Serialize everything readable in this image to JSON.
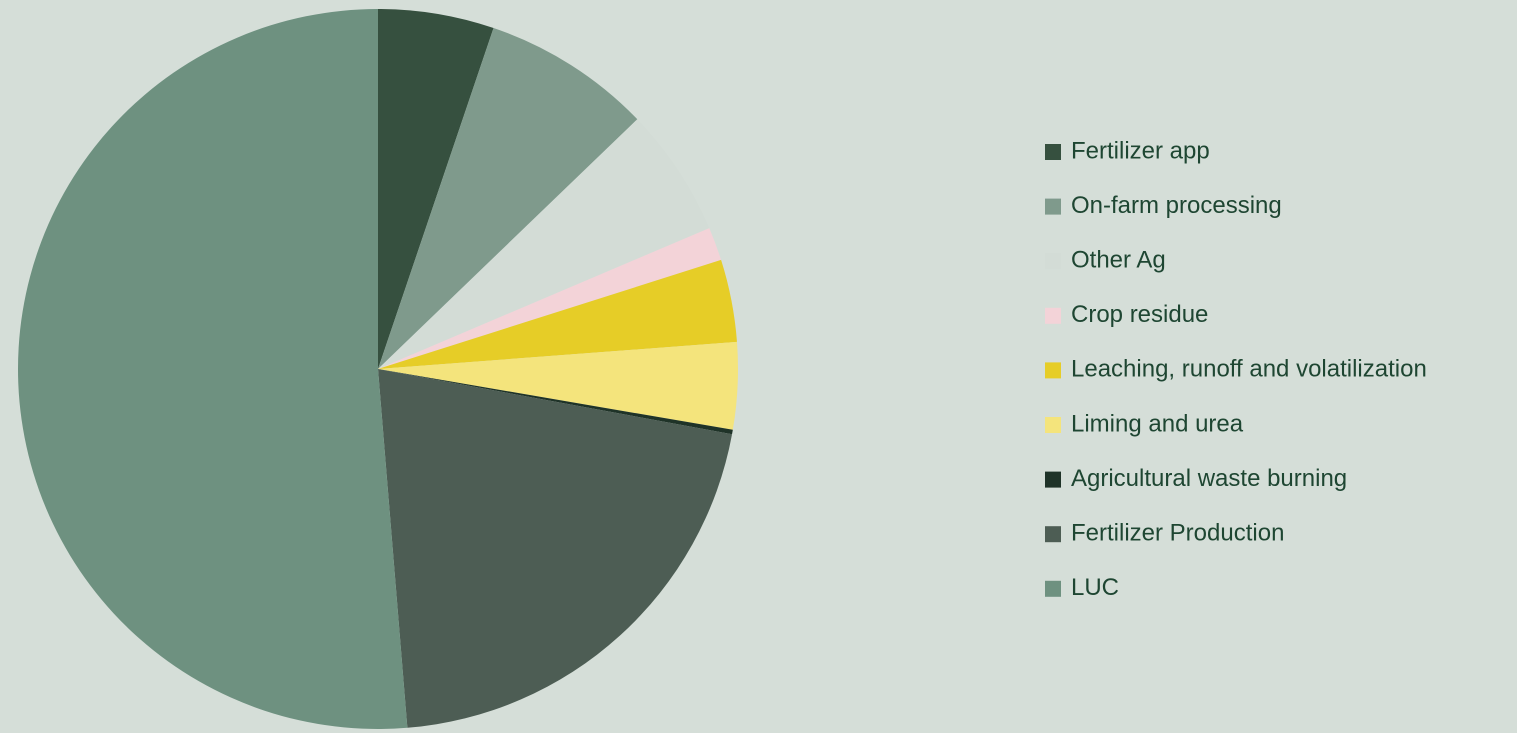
{
  "chart_data": {
    "type": "pie",
    "categories": [
      "Fertilizer app",
      "On-farm processing",
      "Other Ag",
      "Crop residue",
      "Leaching, runoff and volatilization",
      "Liming and urea",
      "Agricultural waste burning",
      "Fertilizer Production",
      "LUC"
    ],
    "values": [
      5.2,
      7.6,
      5.8,
      1.5,
      3.7,
      3.9,
      0.2,
      20.8,
      51.3
    ],
    "colors": [
      "#36503f",
      "#7f9a8c",
      "#d3dcd6",
      "#f3d3d8",
      "#e6cd27",
      "#f4e47c",
      "#1f3328",
      "#4d5d54",
      "#6e9180"
    ],
    "legend": "right"
  }
}
